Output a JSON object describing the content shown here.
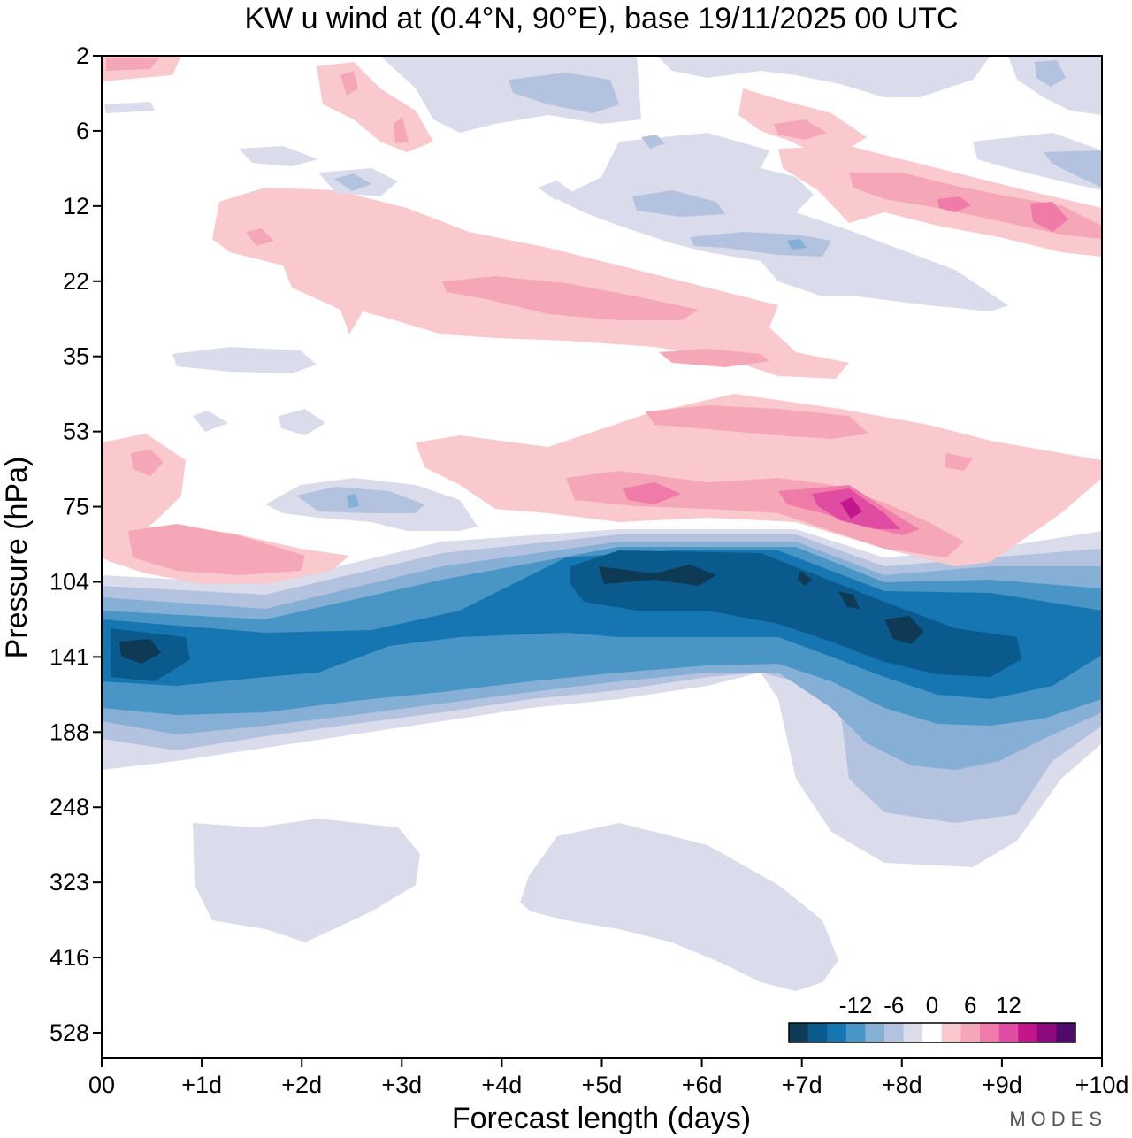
{
  "chart_data": {
    "type": "heatmap",
    "title": "KW u wind at (0.4°N, 90°E),  base 19/11/2025  00 UTC",
    "xlabel": "Forecast length (days)",
    "ylabel": "Pressure (hPa)",
    "x_ticks": [
      "00",
      "+1d",
      "+2d",
      "+3d",
      "+4d",
      "+5d",
      "+6d",
      "+7d",
      "+8d",
      "+9d",
      "+10d"
    ],
    "y_ticks": [
      "2",
      "6",
      "12",
      "22",
      "35",
      "53",
      "75",
      "104",
      "141",
      "188",
      "248",
      "323",
      "416",
      "528"
    ],
    "x_range_days": [
      0,
      10
    ],
    "y_range_hpa": [
      2,
      600
    ],
    "colorbar": {
      "tick_labels": [
        "-12",
        "-6",
        "0",
        "6",
        "12"
      ],
      "levels": [
        -15,
        -12,
        -9,
        -6,
        -3,
        0,
        3,
        6,
        9,
        12,
        15
      ],
      "colors": [
        "#0e3a55",
        "#0a5a8e",
        "#1576b2",
        "#4895c6",
        "#85afd5",
        "#b2c2df",
        "#dadbeb",
        "#ffffff",
        "#f9c9cd",
        "#f5a7b7",
        "#f07aa8",
        "#df4ca2",
        "#c3168c",
        "#8e0a7e",
        "#4f0a6b"
      ],
      "position": "bottom-right"
    },
    "features": [
      {
        "name": "Strong easterly (negative) band",
        "pressure_hpa": [
          104,
          188
        ],
        "days": [
          0,
          10
        ],
        "min_value": -15
      },
      {
        "name": "Westerly (positive) maximum",
        "pressure_hpa": [
          60,
          95
        ],
        "days": [
          5,
          8
        ],
        "max_value": 14
      },
      {
        "name": "Upper westerly band",
        "pressure_hpa": [
          6,
          40
        ],
        "days": [
          1,
          10
        ],
        "max_value": 9
      },
      {
        "name": "Weak easterly patch",
        "pressure_hpa": [
          260,
          520
        ],
        "days": [
          4,
          7.5
        ],
        "min_value": -3
      }
    ],
    "branding": "MODES"
  }
}
